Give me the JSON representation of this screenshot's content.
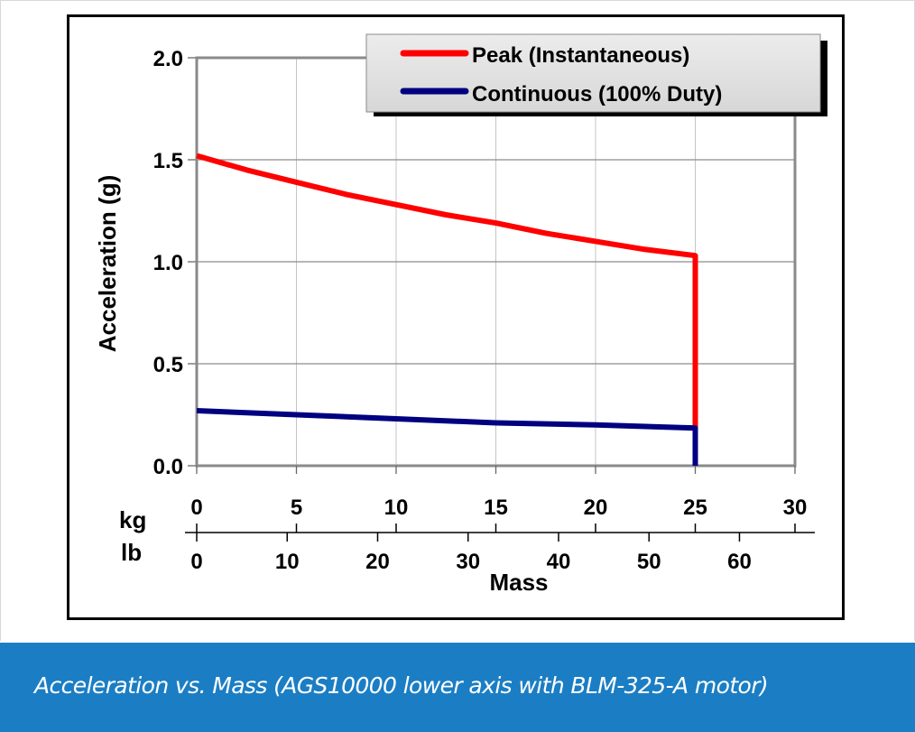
{
  "caption": "Acceleration vs. Mass (AGS10000 lower axis with BLM-325-A motor)",
  "colors": {
    "caption_bg": "#1b7ec4",
    "peak": "#ff0000",
    "continuous": "#000080"
  },
  "chart_data": {
    "type": "line",
    "title": "",
    "xlabel": "Mass",
    "ylabel": "Acceleration (g)",
    "xlim": [
      0,
      30
    ],
    "ylim": [
      0,
      2.0
    ],
    "grid": true,
    "legend_position": "top-right",
    "y_ticks": [
      "0.0",
      "0.5",
      "1.0",
      "1.5",
      "2.0"
    ],
    "y_tick_values": [
      0,
      0.5,
      1.0,
      1.5,
      2.0
    ],
    "x_axes": [
      {
        "unit": "kg",
        "ticks": [
          "0",
          "5",
          "10",
          "15",
          "20",
          "25",
          "30"
        ],
        "tick_values_kg": [
          0,
          5,
          10,
          15,
          20,
          25,
          30
        ]
      },
      {
        "unit": "lb",
        "ticks": [
          "0",
          "10",
          "20",
          "30",
          "40",
          "50",
          "60"
        ],
        "tick_values_lb": [
          0,
          10,
          20,
          30,
          40,
          50,
          60
        ]
      }
    ],
    "series": [
      {
        "name": "Peak (Instantaneous)",
        "color": "#ff0000",
        "x": [
          0,
          2.5,
          5,
          7.5,
          10,
          12.5,
          15,
          17.5,
          20,
          22.5,
          25,
          25
        ],
        "y": [
          1.52,
          1.45,
          1.39,
          1.33,
          1.28,
          1.23,
          1.19,
          1.14,
          1.1,
          1.06,
          1.03,
          0.0
        ]
      },
      {
        "name": "Continuous (100% Duty)",
        "color": "#000080",
        "x": [
          0,
          5,
          10,
          15,
          20,
          25,
          25
        ],
        "y": [
          0.27,
          0.25,
          0.23,
          0.21,
          0.2,
          0.185,
          0.0
        ]
      }
    ]
  }
}
